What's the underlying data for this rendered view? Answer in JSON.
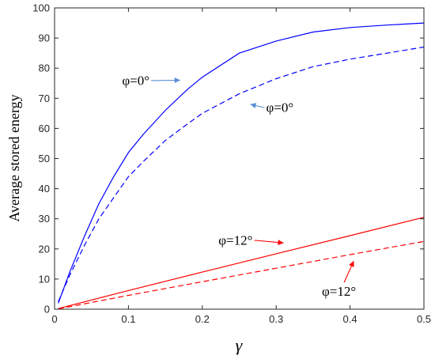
{
  "chart_data": {
    "type": "line",
    "title": "",
    "xlabel": "γ",
    "ylabel": "Average stored energy",
    "xlim": [
      0,
      0.5
    ],
    "ylim": [
      0,
      100
    ],
    "xticks": [
      "0",
      "0.1",
      "0.2",
      "0.3",
      "0.4",
      "0.5"
    ],
    "yticks": [
      "0",
      "10",
      "20",
      "30",
      "40",
      "50",
      "60",
      "70",
      "80",
      "90",
      "100"
    ],
    "grid": false,
    "series": [
      {
        "style": "solid",
        "color": "#0000ff",
        "x": [
          0.005,
          0.02,
          0.04,
          0.06,
          0.08,
          0.1,
          0.12,
          0.15,
          0.18,
          0.2,
          0.25,
          0.3,
          0.35,
          0.4,
          0.45,
          0.5
        ],
        "y": [
          2,
          12,
          24,
          35,
          44,
          52,
          58,
          66,
          73,
          77,
          85,
          89,
          92,
          93.5,
          94.3,
          95
        ]
      },
      {
        "style": "dashed",
        "color": "#0000ff",
        "x": [
          0.005,
          0.02,
          0.04,
          0.06,
          0.08,
          0.1,
          0.12,
          0.15,
          0.18,
          0.2,
          0.25,
          0.3,
          0.35,
          0.4,
          0.45,
          0.5
        ],
        "y": [
          2.5,
          11,
          21,
          30,
          37,
          44,
          49,
          56,
          61.5,
          65,
          71.5,
          76.5,
          80.5,
          83,
          85,
          87
        ]
      },
      {
        "style": "solid",
        "color": "#ff0000",
        "x": [
          0.005,
          0.1,
          0.2,
          0.3,
          0.4,
          0.5
        ],
        "y": [
          0.2,
          6.2,
          12.3,
          18.4,
          24.4,
          30.5
        ]
      },
      {
        "style": "dashed",
        "color": "#ff0000",
        "x": [
          0.005,
          0.1,
          0.2,
          0.3,
          0.4,
          0.5
        ],
        "y": [
          0.1,
          4.6,
          9.1,
          13.6,
          18.1,
          22.5
        ]
      }
    ],
    "annotations": [
      {
        "text": "φ=0°",
        "x": 0.11,
        "y": 76,
        "arrow_to": [
          0.17,
          76
        ],
        "arrow_color": "#5b8fd6"
      },
      {
        "text": "φ=0°",
        "x": 0.305,
        "y": 67,
        "arrow_to": [
          0.265,
          68
        ],
        "arrow_color": "#5b8fd6"
      },
      {
        "text": "φ=12°",
        "x": 0.245,
        "y": 23,
        "arrow_to": [
          0.31,
          22
        ],
        "arrow_color": "#ff0000"
      },
      {
        "text": "φ=12°",
        "x": 0.385,
        "y": 6,
        "arrow_to": [
          0.405,
          16
        ],
        "arrow_color": "#ff0000"
      }
    ]
  }
}
